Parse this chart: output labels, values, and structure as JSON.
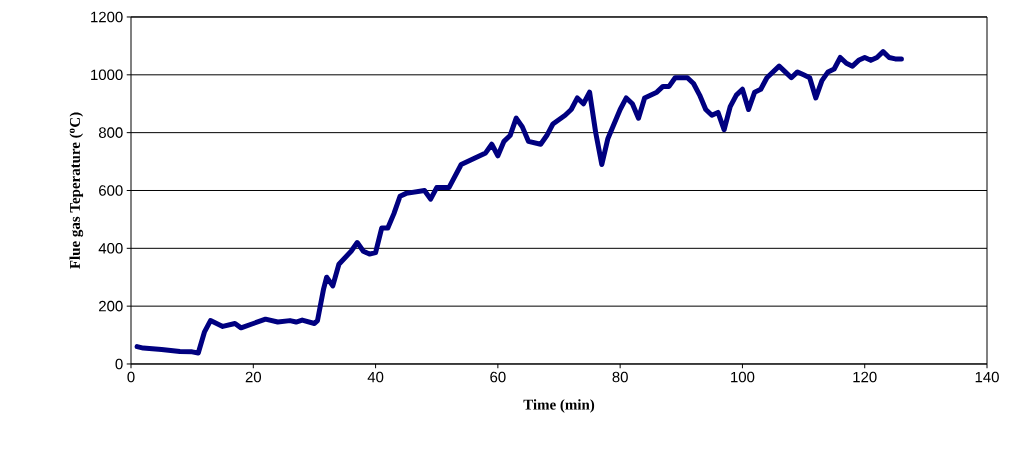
{
  "chart_data": {
    "type": "line",
    "xlabel": "Time (min)",
    "ylabel": "Flue gas Teperature ($^{o}$C)",
    "x": [
      1,
      2,
      5,
      8,
      10,
      11,
      12,
      13,
      15,
      17,
      18,
      20,
      22,
      24,
      26,
      27,
      28,
      30,
      30.5,
      31.5,
      32,
      33,
      34,
      36,
      37,
      38,
      39,
      40,
      41,
      42,
      43,
      44,
      45,
      48,
      49,
      50,
      52,
      54,
      56,
      58,
      59,
      60,
      61,
      62,
      63,
      64,
      65,
      67,
      68,
      69,
      71,
      72,
      73,
      74,
      75,
      76,
      77,
      78,
      80,
      81,
      82,
      83,
      84,
      86,
      87,
      88,
      89,
      91,
      92,
      93,
      94,
      95,
      96,
      97,
      98,
      99,
      100,
      101,
      102,
      103,
      104,
      106,
      107,
      108,
      109,
      110,
      111,
      112,
      113,
      114,
      115,
      116,
      117,
      118,
      119,
      120,
      121,
      122,
      123,
      124,
      125,
      126
    ],
    "series": [
      {
        "color": "#000080",
        "values": [
          60,
          55,
          50,
          43,
          42,
          38,
          110,
          150,
          130,
          140,
          125,
          140,
          155,
          145,
          150,
          145,
          152,
          140,
          150,
          260,
          300,
          270,
          345,
          390,
          420,
          390,
          380,
          385,
          470,
          470,
          520,
          580,
          590,
          600,
          570,
          610,
          610,
          690,
          710,
          730,
          760,
          720,
          770,
          790,
          850,
          820,
          770,
          760,
          790,
          830,
          860,
          880,
          920,
          900,
          940,
          800,
          690,
          780,
          880,
          920,
          900,
          850,
          920,
          940,
          960,
          960,
          990,
          990,
          970,
          930,
          880,
          860,
          870,
          810,
          890,
          930,
          950,
          880,
          940,
          950,
          990,
          1030,
          1010,
          990,
          1010,
          1000,
          990,
          920,
          980,
          1010,
          1020,
          1060,
          1040,
          1030,
          1050,
          1060,
          1050,
          1060,
          1080,
          1060,
          1055,
          1055
        ]
      }
    ],
    "xlim": [
      0,
      140
    ],
    "xticks": [
      0,
      20,
      40,
      60,
      80,
      100,
      120,
      140
    ],
    "ylim": [
      0,
      1200
    ],
    "yticks": [
      0,
      200,
      400,
      600,
      800,
      1000,
      1200
    ],
    "grid": "y",
    "marker": "none",
    "line_style": "solid"
  }
}
